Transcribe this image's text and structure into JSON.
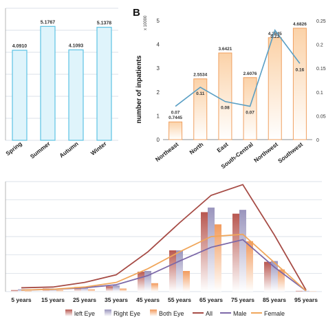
{
  "colors": {
    "season_bar_fill": "#dff4fb",
    "season_bar_stroke": "#5cc3e4",
    "region_bar_top": "#fbd2a8",
    "region_bar_bottom": "#ffffff",
    "region_bar_stroke": "#f0a060",
    "region_line": "#5a9fc4",
    "left_eye": "#b85750",
    "right_eye": "#9a95bd",
    "both_eye": "#f29a5c",
    "all_line": "#a64b45",
    "male_line": "#7c68a8",
    "female_line": "#f0a65a",
    "grid": "#cfd8e0"
  },
  "chart_data": [
    {
      "id": "season",
      "type": "bar",
      "title": "",
      "categories": [
        "Spring",
        "Summer",
        "Autumn",
        "Winter"
      ],
      "values": [
        4.091,
        5.1767,
        4.1093,
        5.1378
      ],
      "value_labels": [
        "4.0910",
        "5.1767",
        "4.1093",
        "5.1378"
      ],
      "ylim": [
        0,
        6
      ],
      "grid": true
    },
    {
      "id": "region",
      "type": "bar",
      "panel_label": "B",
      "ylabel": "number of inpatients",
      "yscale_note": "x 10000",
      "categories": [
        "Northeast",
        "North",
        "East",
        "South-Central",
        "Northwest",
        "Southwest"
      ],
      "values": [
        0.7445,
        2.5534,
        3.6421,
        2.6076,
        4.2845,
        4.6826
      ],
      "value_labels": [
        "0.7445",
        "2.5534",
        "3.6421",
        "2.6076",
        "4.2845",
        "4.6826"
      ],
      "ylim": [
        0,
        5
      ],
      "yticks": [
        "0",
        "1",
        "2",
        "3",
        "4",
        "5"
      ],
      "secondary_series": {
        "type": "line",
        "values": [
          0.07,
          0.11,
          0.08,
          0.07,
          0.23,
          0.16
        ],
        "value_labels": [
          "0.07",
          "0.11",
          "0.08",
          "0.07",
          "0.23",
          "0.16"
        ],
        "ylim": [
          0,
          0.25
        ],
        "yticks": [
          "0",
          "0.05",
          "0.1",
          "0.15",
          "0.2",
          "0.25"
        ]
      }
    },
    {
      "id": "age",
      "type": "bar",
      "categories": [
        "5 years",
        "15 years",
        "25 years",
        "35 years",
        "45 years",
        "55 years",
        "65 years",
        "75 years",
        "85 years",
        "95 years"
      ],
      "ylim": [
        0,
        7.2
      ],
      "grid": true,
      "series": [
        {
          "name": "left Eye",
          "type": "bar",
          "values": [
            0.1,
            0.2,
            0.3,
            0.35,
            1.3,
            2.7,
            5.2,
            5.1,
            1.95,
            0.05
          ]
        },
        {
          "name": "Right Eye",
          "type": "bar",
          "values": [
            0.15,
            0.2,
            0.3,
            0.4,
            1.35,
            2.7,
            5.5,
            5.35,
            2.0,
            0.05
          ]
        },
        {
          "name": "Both Eye",
          "type": "bar",
          "values": [
            0.05,
            0.1,
            0.15,
            0.2,
            0.55,
            1.35,
            4.4,
            3.3,
            1.45,
            0.02
          ]
        },
        {
          "name": "All",
          "type": "line",
          "values": [
            0.25,
            0.3,
            0.6,
            1.1,
            2.6,
            4.5,
            6.3,
            7.0,
            3.7,
            0.1
          ]
        },
        {
          "name": "Male",
          "type": "line",
          "values": [
            0.1,
            0.15,
            0.25,
            0.45,
            1.05,
            2.0,
            2.9,
            3.4,
            1.6,
            0.05
          ]
        },
        {
          "name": "Female",
          "type": "line",
          "values": [
            0.1,
            0.15,
            0.3,
            0.6,
            1.5,
            2.6,
            3.6,
            3.75,
            1.9,
            0.05
          ]
        }
      ]
    }
  ]
}
